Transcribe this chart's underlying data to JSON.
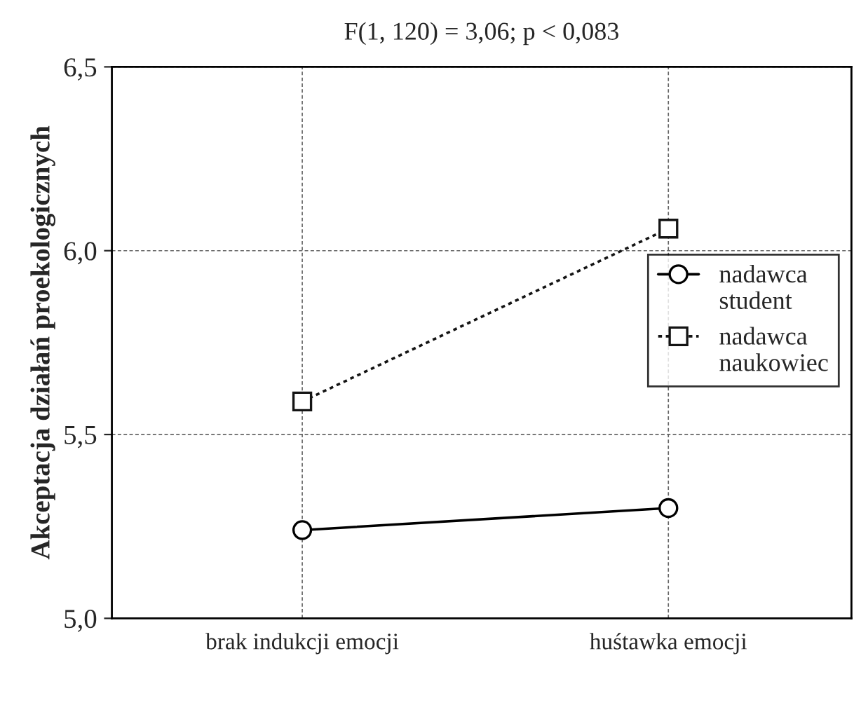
{
  "chart_data": {
    "type": "line",
    "title": "F(1, 120) = 3,06; p < 0,083",
    "ylabel": "Akceptacja działań proekologicznych",
    "categories": [
      "brak indukcji emocji",
      "huśtawka emocji"
    ],
    "series": [
      {
        "name": "nadawca\nstudent",
        "color": "#000000",
        "marker": "circle",
        "line_style": "solid",
        "values": [
          5.24,
          5.3
        ]
      },
      {
        "name": "nadawca\nnaukowiec",
        "color": "#141414",
        "marker": "square",
        "line_style": "dotted",
        "values": [
          5.59,
          6.06
        ]
      }
    ],
    "ylim": [
      5.0,
      6.5
    ],
    "yticks": [
      {
        "value": 5.0,
        "label": "5,0"
      },
      {
        "value": 5.5,
        "label": "5,5"
      },
      {
        "value": 6.0,
        "label": "6,0"
      },
      {
        "value": 6.5,
        "label": "6,5"
      }
    ],
    "grid": true,
    "legend": "right"
  }
}
